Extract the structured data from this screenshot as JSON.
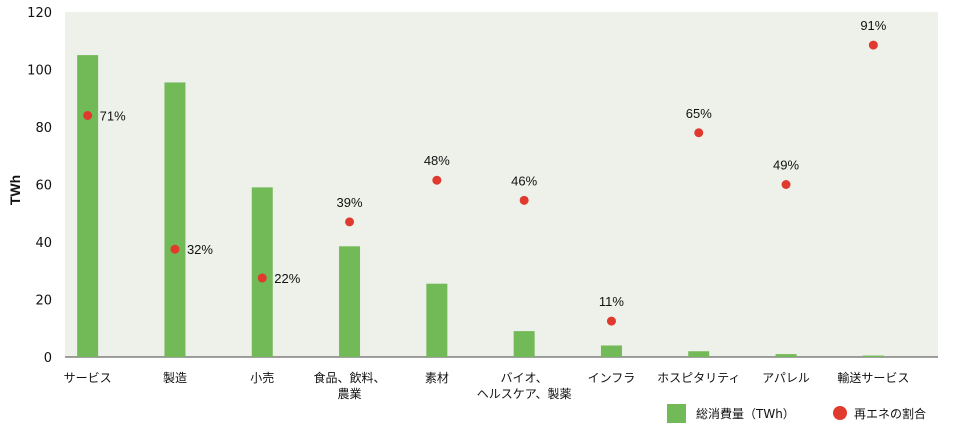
{
  "chart_data": {
    "type": "bar",
    "ylabel": "TWh",
    "ylim": [
      0,
      120
    ],
    "yticks": [
      0,
      20,
      40,
      60,
      80,
      100,
      120
    ],
    "categories": [
      [
        "サービス"
      ],
      [
        "製造"
      ],
      [
        "小売"
      ],
      [
        "食品、飲料、",
        "農業"
      ],
      [
        "素材"
      ],
      [
        "バイオ、",
        "ヘルスケア、製薬"
      ],
      [
        "インフラ"
      ],
      [
        "ホスピタリティ"
      ],
      [
        "アパレル"
      ],
      [
        "輸送サービス"
      ]
    ],
    "series": [
      {
        "name": "総消費量（TWh）",
        "type": "bar",
        "color": "#72b957",
        "values": [
          105,
          95.5,
          59,
          38.5,
          25.5,
          9,
          4,
          2,
          1,
          0.5
        ]
      },
      {
        "name": "再エネの割合",
        "type": "scatter",
        "color": "#e03a2f",
        "values": [
          84,
          37.5,
          27.5,
          47,
          61.5,
          54.5,
          12.5,
          78,
          60,
          108.5
        ],
        "labels": [
          "71%",
          "32%",
          "22%",
          "39%",
          "48%",
          "46%",
          "11%",
          "65%",
          "49%",
          "91%"
        ],
        "label_position": [
          "right",
          "right",
          "right",
          "above",
          "above",
          "above",
          "above",
          "above",
          "above",
          "above"
        ]
      }
    ],
    "background": "#eef1ea",
    "grid": false,
    "legend_position": "bottom-right"
  }
}
